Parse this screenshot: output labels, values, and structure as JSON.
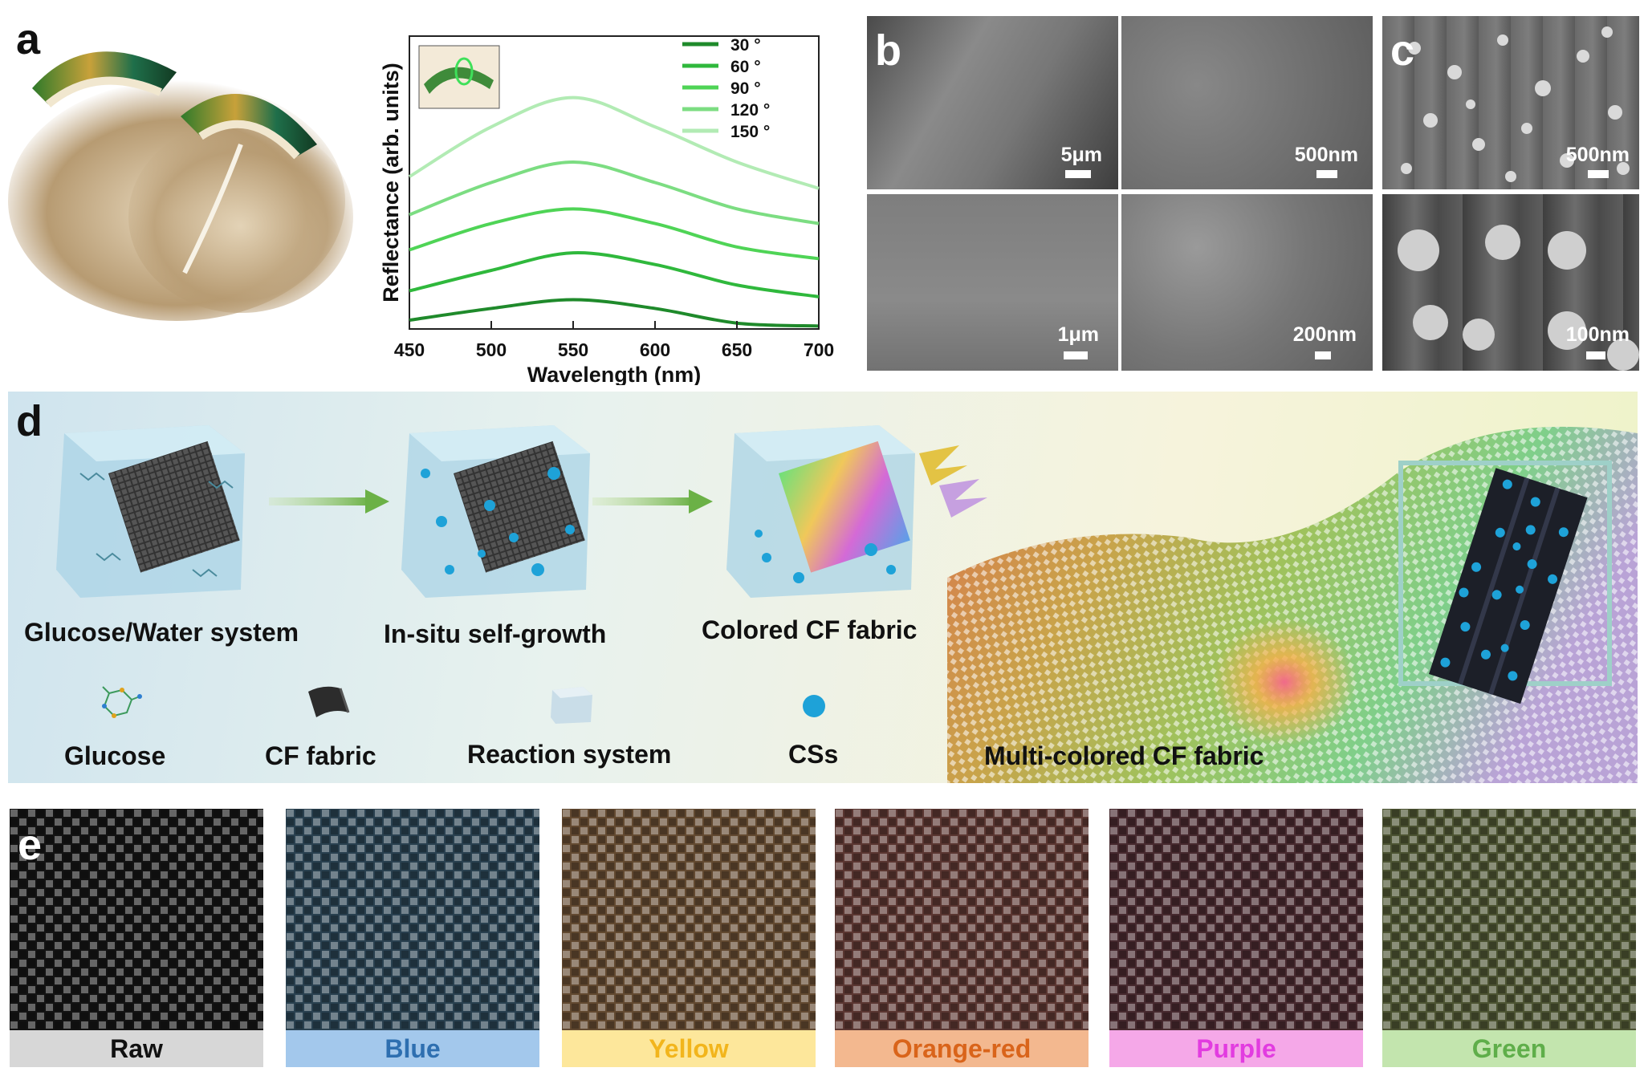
{
  "panels": {
    "a": "a",
    "b": "b",
    "c": "c",
    "d": "d",
    "e": "e"
  },
  "chart_data": {
    "type": "line",
    "title": "",
    "xlabel": "Wavelength (nm)",
    "ylabel": "Reflectance (arb. units)",
    "xlim": [
      450,
      700
    ],
    "ylim": [
      0,
      1
    ],
    "xticks": [
      "450",
      "500",
      "550",
      "600",
      "650",
      "700"
    ],
    "legend_position": "top-right",
    "series": [
      {
        "name": "30",
        "color": "#1f8a2b",
        "x": [
          450,
          500,
          550,
          600,
          650,
          700
        ],
        "y": [
          0.03,
          0.07,
          0.1,
          0.07,
          0.02,
          0.01
        ]
      },
      {
        "name": "60",
        "color": "#2fb83c",
        "x": [
          450,
          500,
          550,
          600,
          650,
          700
        ],
        "y": [
          0.13,
          0.2,
          0.26,
          0.22,
          0.15,
          0.11
        ]
      },
      {
        "name": "90",
        "color": "#4fd456",
        "x": [
          450,
          500,
          550,
          600,
          650,
          700
        ],
        "y": [
          0.27,
          0.36,
          0.41,
          0.36,
          0.28,
          0.24
        ]
      },
      {
        "name": "120",
        "color": "#7cdd82",
        "x": [
          450,
          500,
          550,
          600,
          650,
          700
        ],
        "y": [
          0.39,
          0.5,
          0.57,
          0.5,
          0.41,
          0.36
        ]
      },
      {
        "name": "150",
        "color": "#b2ebb4",
        "x": [
          450,
          500,
          550,
          600,
          650,
          700
        ],
        "y": [
          0.52,
          0.69,
          0.79,
          0.69,
          0.57,
          0.48
        ]
      }
    ],
    "legend_unit": "°"
  },
  "sem_b": [
    {
      "scale": "5μm"
    },
    {
      "scale": "500nm"
    },
    {
      "scale": "1μm"
    },
    {
      "scale": "200nm"
    }
  ],
  "sem_c": [
    {
      "scale": "500nm"
    },
    {
      "scale": "100nm"
    }
  ],
  "schematic": {
    "steps": [
      "Glucose/Water system",
      "In-situ self-growth",
      "Colored CF fabric"
    ],
    "legend": [
      "Glucose",
      "CF fabric",
      "Reaction system",
      "CSs"
    ],
    "fabric_label": "Multi-colored CF fabric"
  },
  "fabrics": [
    {
      "label": "Raw",
      "text_color": "#111111",
      "bar_color": "#d7d7d7",
      "tint": "#2b2b2b"
    },
    {
      "label": "Blue",
      "text_color": "#2e6fb0",
      "bar_color": "#a3c8ec",
      "tint": "#5a8fb0"
    },
    {
      "label": "Yellow",
      "text_color": "#f2b51c",
      "bar_color": "#fde79b",
      "tint": "#d9a16a"
    },
    {
      "label": "Orange-red",
      "text_color": "#d9641a",
      "bar_color": "#f3b88f",
      "tint": "#c8776c"
    },
    {
      "label": "Purple",
      "text_color": "#e23ce0",
      "bar_color": "#f5a8e8",
      "tint": "#9c5a66"
    },
    {
      "label": "Green",
      "text_color": "#5fae4a",
      "bar_color": "#c3e5ae",
      "tint": "#a8b86e"
    }
  ]
}
